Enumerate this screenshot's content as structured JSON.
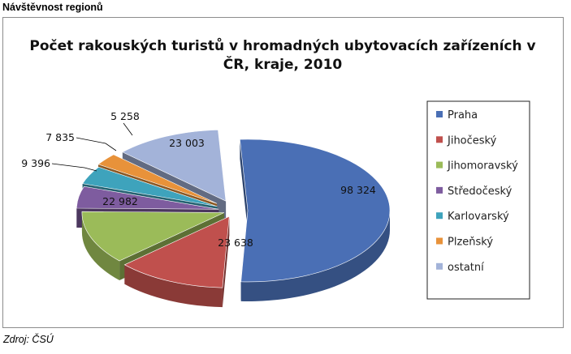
{
  "page": {
    "section_heading": "Návštěvnost regionů",
    "source_note": "Zdroj: ČSÚ"
  },
  "chart_data": {
    "type": "pie",
    "title": "Počet rakouských turistů v hromadných ubytovacích zařízeních v ČR, kraje, 2010",
    "title_lines": [
      "Počet rakouských turistů v hromadných ubytovacích zařízeních v",
      "ČR, kraje, 2010"
    ],
    "style": "3d-exploded",
    "legend_position": "right",
    "slices": [
      {
        "name": "Praha",
        "value": 98324,
        "label": "98 324",
        "color": "#4a6fb5"
      },
      {
        "name": "Jihočeský",
        "value": 23638,
        "label": "23 638",
        "color": "#c0504d"
      },
      {
        "name": "Jihomoravský",
        "value": 22982,
        "label": "22 982",
        "color": "#9bbb59"
      },
      {
        "name": "Středočeský",
        "value": 9396,
        "label": "9 396",
        "color": "#7e5c9f"
      },
      {
        "name": "Karlovarský",
        "value": 7835,
        "label": "7 835",
        "color": "#3ea3bc"
      },
      {
        "name": "Plzeňský",
        "value": 5258,
        "label": "5 258",
        "color": "#e8923a"
      },
      {
        "name": "ostatní",
        "value": 23003,
        "label": "23 003",
        "color": "#a3b3d9"
      }
    ]
  }
}
